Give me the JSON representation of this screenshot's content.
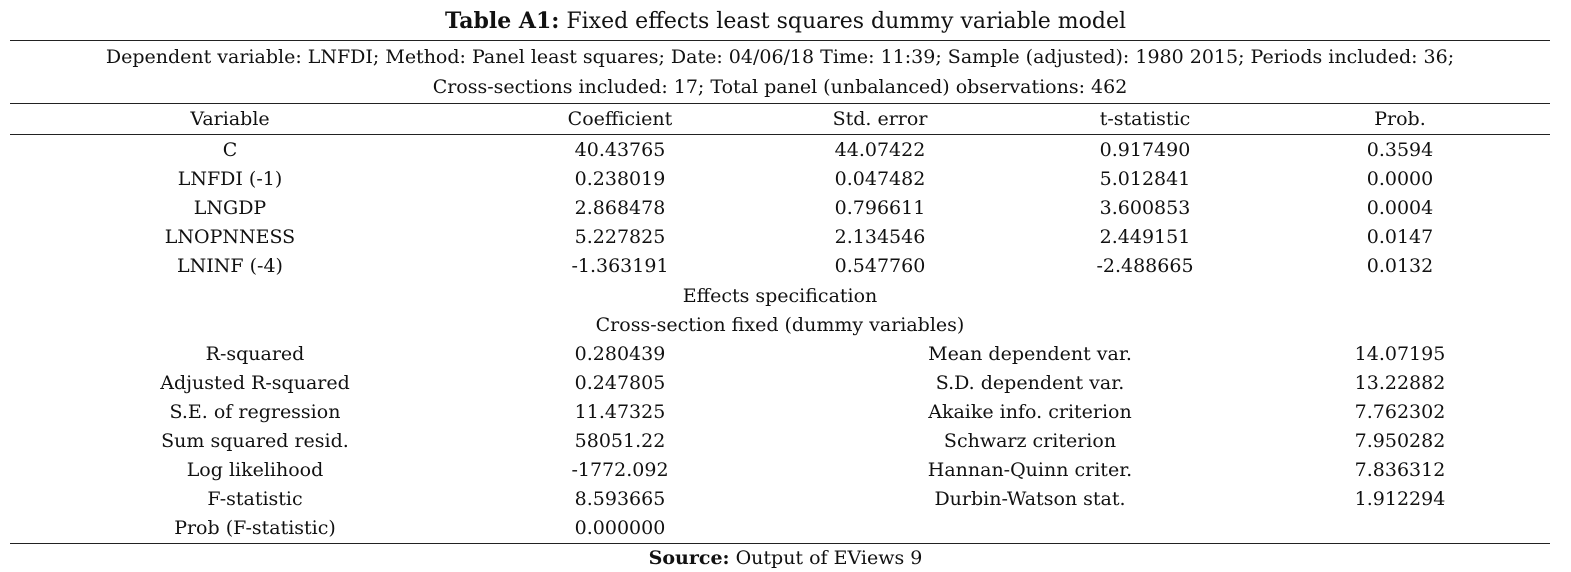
{
  "caption": {
    "label": "Table A1:",
    "text": " Fixed effects least squares dummy variable model"
  },
  "meta": {
    "line1": "Dependent variable: LNFDI; Method: Panel least squares; Date: 04/06/18   Time: 11:39; Sample (adjusted): 1980 2015; Periods included: 36;",
    "line2": "Cross-sections included: 17; Total panel (unbalanced) observations: 462"
  },
  "headers": [
    "Variable",
    "Coefficient",
    "Std. error",
    "t-statistic",
    "Prob."
  ],
  "rows": [
    [
      "C",
      "40.43765",
      "44.07422",
      "0.917490",
      "0.3594"
    ],
    [
      "LNFDI (-1)",
      "0.238019",
      "0.047482",
      "5.012841",
      "0.0000"
    ],
    [
      "LNGDP",
      "2.868478",
      "0.796611",
      "3.600853",
      "0.0004"
    ],
    [
      "LNOPNNESS",
      "5.227825",
      "2.134546",
      "2.449151",
      "0.0147"
    ],
    [
      "LNINF (-4)",
      "-1.363191",
      "0.547760",
      "-2.488665",
      "0.0132"
    ]
  ],
  "effects": {
    "title": "Effects specification",
    "subtitle": "Cross-section fixed (dummy variables)"
  },
  "stats": [
    [
      "R-squared",
      "0.280439",
      "Mean dependent var.",
      "14.07195"
    ],
    [
      "Adjusted R-squared",
      "0.247805",
      "S.D. dependent var.",
      "13.22882"
    ],
    [
      "S.E. of regression",
      "11.47325",
      "Akaike info. criterion",
      "7.762302"
    ],
    [
      "Sum squared resid.",
      "58051.22",
      "Schwarz criterion",
      "7.950282"
    ],
    [
      "Log likelihood",
      "-1772.092",
      "Hannan-Quinn criter.",
      "7.836312"
    ],
    [
      "F-statistic",
      "8.593665",
      "Durbin-Watson stat.",
      "1.912294"
    ],
    [
      "Prob (F-statistic)",
      "0.000000",
      "",
      ""
    ]
  ],
  "source": {
    "label": "Source:",
    "text": " Output of EViews 9"
  }
}
